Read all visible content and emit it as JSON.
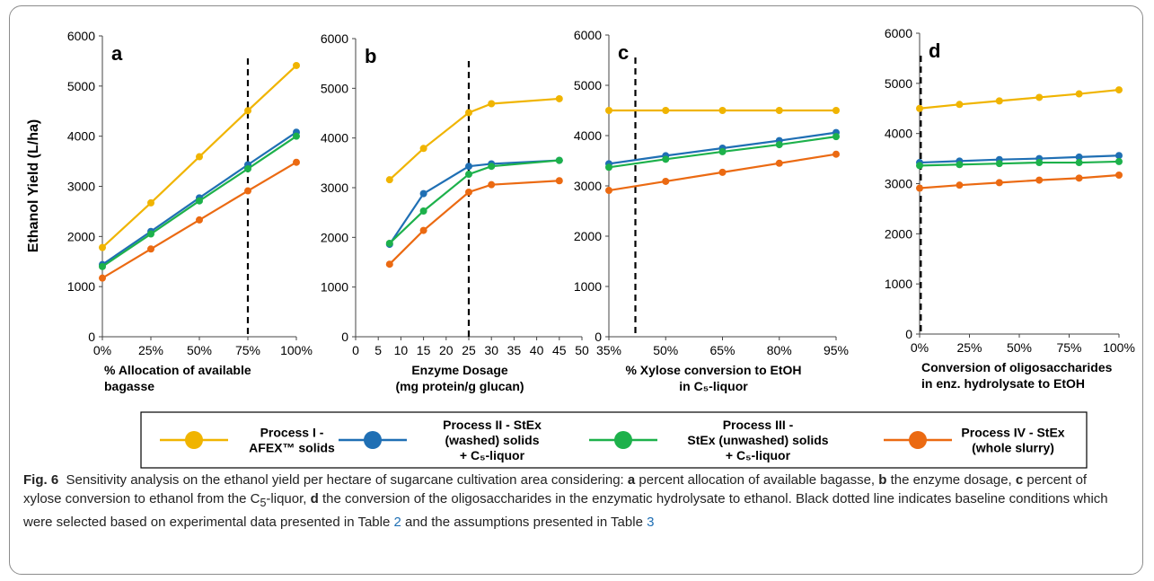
{
  "colors": {
    "process_1": "#F0B400",
    "process_2": "#1F6FB4",
    "process_3": "#1DB14B",
    "process_4": "#EB6A12",
    "baseline": "#000000"
  },
  "y_axis_title": "Ethanol Yield (L/ha)",
  "chart_data": [
    {
      "id": "a",
      "type": "line",
      "panel_label": "a",
      "xlabel": [
        "% Allocation of available",
        "bagasse"
      ],
      "x": [
        0,
        25,
        50,
        75,
        100
      ],
      "xticks": [
        0,
        25,
        50,
        75,
        100
      ],
      "xtick_labels": [
        "0%",
        "25%",
        "50%",
        "75%",
        "100%"
      ],
      "xlim": [
        0,
        100
      ],
      "ylim": [
        0,
        6000
      ],
      "yticks": [
        0,
        1000,
        2000,
        3000,
        4000,
        5000,
        6000
      ],
      "yticks_labels": [
        "0",
        "1000",
        "2000",
        "3000",
        "4000",
        "5000",
        "6000"
      ],
      "baseline_x": 75,
      "series": [
        {
          "key": "process_1",
          "values": [
            1780,
            2670,
            3590,
            4510,
            5410
          ]
        },
        {
          "key": "process_2",
          "values": [
            1440,
            2100,
            2770,
            3430,
            4080
          ]
        },
        {
          "key": "process_3",
          "values": [
            1400,
            2050,
            2710,
            3350,
            4000
          ]
        },
        {
          "key": "process_4",
          "values": [
            1170,
            1750,
            2330,
            2910,
            3480
          ]
        }
      ]
    },
    {
      "id": "b",
      "type": "line",
      "panel_label": "b",
      "xlabel": [
        "Enzyme Dosage",
        "(mg protein/g glucan)"
      ],
      "x": [
        7.5,
        15,
        25,
        30,
        45
      ],
      "xticks": [
        0,
        5,
        10,
        15,
        20,
        25,
        30,
        35,
        40,
        45,
        50
      ],
      "xtick_labels": [
        "0",
        "5",
        "10",
        "15",
        "20",
        "25",
        "30",
        "35",
        "40",
        "45",
        "50"
      ],
      "xlim": [
        0,
        50
      ],
      "ylim": [
        0,
        6000
      ],
      "yticks": [
        0,
        1000,
        2000,
        3000,
        4000,
        5000,
        6000
      ],
      "yticks_labels": [
        "0",
        "1000",
        "2000",
        "3000",
        "4000",
        "5000",
        "6000"
      ],
      "baseline_x": 25,
      "series": [
        {
          "key": "process_1",
          "values": [
            3160,
            3790,
            4510,
            4690,
            4790
          ]
        },
        {
          "key": "process_2",
          "values": [
            1860,
            2880,
            3430,
            3480,
            3550
          ]
        },
        {
          "key": "process_3",
          "values": [
            1880,
            2530,
            3270,
            3430,
            3550
          ]
        },
        {
          "key": "process_4",
          "values": [
            1460,
            2140,
            2910,
            3060,
            3140
          ]
        }
      ]
    },
    {
      "id": "c",
      "type": "line",
      "panel_label": "c",
      "xlabel": [
        "% Xylose conversion to EtOH",
        "in C₅-liquor"
      ],
      "x": [
        35,
        50,
        65,
        80,
        95
      ],
      "xticks": [
        35,
        50,
        65,
        80,
        95
      ],
      "xtick_labels": [
        "35%",
        "50%",
        "65%",
        "80%",
        "95%"
      ],
      "xlim": [
        35,
        95
      ],
      "ylim": [
        0,
        6000
      ],
      "yticks": [
        0,
        1000,
        2000,
        3000,
        4000,
        5000,
        6000
      ],
      "yticks_labels": [
        "0",
        "1000",
        "2000",
        "3000",
        "4000",
        "5000",
        "6000"
      ],
      "baseline_x": 42,
      "series": [
        {
          "key": "process_1",
          "values": [
            4500,
            4500,
            4500,
            4500,
            4500
          ]
        },
        {
          "key": "process_2",
          "values": [
            3440,
            3600,
            3750,
            3900,
            4060
          ]
        },
        {
          "key": "process_3",
          "values": [
            3370,
            3530,
            3680,
            3820,
            3980
          ]
        },
        {
          "key": "process_4",
          "values": [
            2910,
            3090,
            3270,
            3450,
            3630
          ]
        }
      ]
    },
    {
      "id": "d",
      "type": "line",
      "panel_label": "d",
      "xlabel": [
        "Conversion of oligosaccharides",
        "in enz. hydrolysate to EtOH"
      ],
      "x": [
        0,
        20,
        40,
        60,
        80,
        100
      ],
      "xticks": [
        0,
        25,
        50,
        75,
        100
      ],
      "xtick_labels": [
        "0%",
        "25%",
        "50%",
        "75%",
        "100%"
      ],
      "xlim": [
        0,
        100
      ],
      "ylim": [
        0,
        6000
      ],
      "yticks": [
        0,
        1000,
        2000,
        3000,
        4000,
        5000,
        6000
      ],
      "yticks_labels": [
        "0",
        "1000",
        "2000",
        "3000",
        "4000",
        "5000",
        "6000"
      ],
      "baseline_x": 0.6,
      "series": [
        {
          "key": "process_1",
          "values": [
            4500,
            4580,
            4650,
            4720,
            4790,
            4870
          ]
        },
        {
          "key": "process_2",
          "values": [
            3420,
            3450,
            3480,
            3500,
            3530,
            3560
          ]
        },
        {
          "key": "process_3",
          "values": [
            3360,
            3380,
            3400,
            3420,
            3420,
            3440
          ]
        },
        {
          "key": "process_4",
          "values": [
            2910,
            2970,
            3020,
            3070,
            3110,
            3170
          ]
        }
      ]
    }
  ],
  "legend": [
    {
      "key": "process_1",
      "lines": [
        "Process I -",
        "AFEX™ solids"
      ]
    },
    {
      "key": "process_2",
      "lines": [
        "Process II - StEx",
        "(washed) solids",
        "+ C₅-liquor"
      ]
    },
    {
      "key": "process_3",
      "lines": [
        "Process III -",
        "StEx (unwashed) solids",
        "+ C₅-liquor"
      ]
    },
    {
      "key": "process_4",
      "lines": [
        "Process IV - StEx",
        "(whole slurry)"
      ]
    }
  ],
  "caption": {
    "fig": "Fig. 6",
    "t1": "Sensitivity analysis on the ethanol yield per hectare of sugarcane cultivation area considering:",
    "la": "a",
    "t2": "percent allocation of available bagasse,",
    "lb": "b",
    "t3": "the enzyme dosage,",
    "lc": "c",
    "t4": "percent of xylose conversion to ethanol from the C",
    "t4sub": "5",
    "t5": "-liquor,",
    "ld": "d",
    "t6": "the conversion of the oligosaccharides in the enzymatic hydrolysate to ethanol. Black dotted line indicates baseline conditions which were selected based on experimental data presented in Table",
    "t6ref": "2",
    "t7": "and the assumptions presented in Table",
    "t7ref": "3"
  }
}
